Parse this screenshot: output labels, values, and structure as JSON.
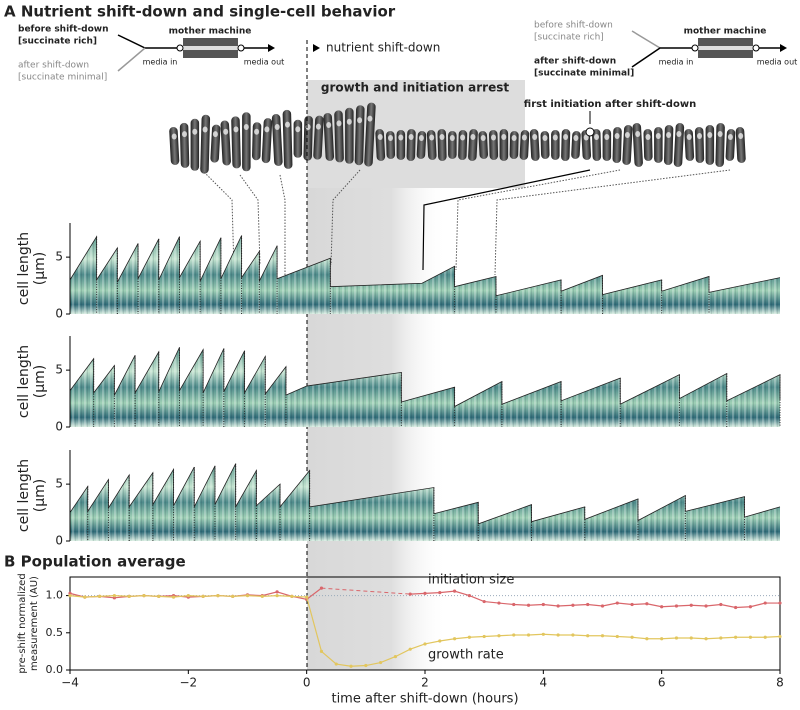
{
  "figure": {
    "panel_a_title": "A  Nutrient shift-down and single-cell behavior",
    "panel_b_title": "B  Population average",
    "shift_label": "nutrient shift-down",
    "arrest_label": "growth and initiation arrest",
    "first_initiation_label": "first initiation after shift-down",
    "schematics": [
      {
        "before": "before shift-down",
        "before_medium": "[succinate rich]",
        "after": "after shift-down",
        "after_medium": "[succinate minimal]",
        "device": "mother machine",
        "media_in": "media in",
        "media_out": "media out"
      },
      {
        "before": "before shift-down",
        "before_medium": "[succinate rich]",
        "after": "after shift-down",
        "after_medium": "[succinate minimal]",
        "device": "mother machine",
        "media_in": "media in",
        "media_out": "media out"
      }
    ]
  },
  "chart_data": [
    {
      "type": "area",
      "ylabel": [
        "cell length",
        "(µm)"
      ],
      "xlim": [
        -4,
        8
      ],
      "ylim": [
        0,
        8
      ],
      "yticks": [
        0,
        5
      ],
      "x": [
        -4,
        -3.55,
        -3.55,
        -3.2,
        -3.2,
        -2.85,
        -2.85,
        -2.5,
        -2.5,
        -2.15,
        -2.15,
        -1.8,
        -1.8,
        -1.45,
        -1.45,
        -1.1,
        -1.1,
        -0.8,
        -0.8,
        -0.5,
        -0.5,
        0.4,
        0.4,
        1.95,
        2.5,
        2.5,
        3.2,
        3.2,
        4.3,
        4.3,
        5.0,
        5.0,
        6.0,
        6.0,
        6.8,
        6.8,
        8
      ],
      "values": [
        3.0,
        6.8,
        3.0,
        5.8,
        2.8,
        6.2,
        3.1,
        6.6,
        3.0,
        6.8,
        3.2,
        6.4,
        2.9,
        6.7,
        3.1,
        6.9,
        3.2,
        5.5,
        2.9,
        6.0,
        3.1,
        4.9,
        2.4,
        2.7,
        4.2,
        2.4,
        3.3,
        1.6,
        3.0,
        2.0,
        3.4,
        1.7,
        3.0,
        2.0,
        3.3,
        1.9,
        3.2
      ]
    },
    {
      "type": "area",
      "ylabel": [
        "cell length",
        "(µm)"
      ],
      "xlim": [
        -4,
        8
      ],
      "ylim": [
        0,
        8
      ],
      "yticks": [
        0,
        5
      ],
      "x": [
        -4,
        -3.6,
        -3.6,
        -3.25,
        -3.25,
        -2.9,
        -2.9,
        -2.5,
        -2.5,
        -2.15,
        -2.15,
        -1.75,
        -1.75,
        -1.4,
        -1.4,
        -1.05,
        -1.05,
        -0.7,
        -0.7,
        -0.35,
        -0.35,
        0,
        1.6,
        1.6,
        2.5,
        2.5,
        3.3,
        3.3,
        4.3,
        4.3,
        5.3,
        5.3,
        6.3,
        6.3,
        7.1,
        7.1,
        8,
        8
      ],
      "values": [
        3.2,
        6.0,
        3.0,
        5.4,
        2.8,
        6.3,
        3.0,
        6.6,
        3.1,
        7.0,
        3.2,
        6.8,
        3.0,
        6.9,
        3.1,
        6.7,
        3.0,
        6.2,
        2.9,
        5.3,
        2.8,
        3.6,
        4.8,
        2.2,
        3.5,
        1.8,
        4.0,
        2.0,
        4.0,
        2.3,
        4.3,
        2.0,
        4.6,
        2.5,
        4.7,
        2.3,
        4.6,
        2.4
      ]
    },
    {
      "type": "area",
      "ylabel": [
        "cell length",
        "(µm)"
      ],
      "xlim": [
        -4,
        8
      ],
      "ylim": [
        0,
        8
      ],
      "yticks": [
        0,
        5
      ],
      "x": [
        -4,
        -3.7,
        -3.7,
        -3.35,
        -3.35,
        -3.0,
        -3.0,
        -2.6,
        -2.6,
        -2.25,
        -2.25,
        -1.9,
        -1.9,
        -1.55,
        -1.55,
        -1.2,
        -1.2,
        -0.85,
        -0.85,
        -0.45,
        -0.45,
        0.05,
        0.05,
        2.15,
        2.15,
        2.9,
        2.9,
        3.8,
        3.8,
        4.7,
        4.7,
        5.6,
        5.6,
        6.4,
        6.4,
        7.4,
        7.4,
        8
      ],
      "values": [
        2.5,
        4.8,
        2.6,
        5.4,
        2.9,
        5.8,
        3.0,
        6.0,
        3.2,
        6.3,
        3.1,
        6.5,
        3.0,
        6.6,
        3.2,
        6.8,
        3.0,
        6.2,
        3.1,
        5.0,
        3.0,
        6.2,
        3.0,
        4.7,
        2.4,
        3.4,
        1.5,
        3.2,
        1.7,
        3.0,
        1.9,
        3.7,
        1.8,
        4.0,
        2.6,
        3.9,
        2.1,
        3.0
      ]
    },
    {
      "type": "line",
      "xlabel": "time after shift-down (hours)",
      "ylabel": [
        "pre-shift normalized",
        "measurement (AU)"
      ],
      "xlim": [
        -4,
        8
      ],
      "ylim": [
        0,
        1.25
      ],
      "reference_line": 1,
      "xticks": [
        {
          "value": -4,
          "label": "−4"
        },
        {
          "value": -2,
          "label": "−2"
        },
        0,
        2,
        4,
        6,
        8
      ],
      "yticks": [
        {
          "value": 0,
          "label": "0.0"
        },
        {
          "value": 0.5,
          "label": "0.5"
        },
        {
          "value": 1,
          "label": "1.0"
        }
      ],
      "x": [
        -4,
        -3.75,
        -3.5,
        -3.25,
        -3,
        -2.75,
        -2.5,
        -2.25,
        -2,
        -1.75,
        -1.5,
        -1.25,
        -1,
        -0.75,
        -0.5,
        -0.25,
        0,
        0.25,
        0.5,
        0.75,
        1,
        1.25,
        1.5,
        1.75,
        2,
        2.25,
        2.5,
        2.75,
        3,
        3.25,
        3.5,
        3.75,
        4,
        4.25,
        4.5,
        4.75,
        5,
        5.25,
        5.5,
        5.75,
        6,
        6.25,
        6.5,
        6.75,
        7,
        7.25,
        7.5,
        7.75,
        8
      ],
      "series": [
        {
          "name": "initiation size",
          "color": "#d9666b",
          "values": [
            1.03,
            0.98,
            0.99,
            0.97,
            0.99,
            1.0,
            0.99,
            1.0,
            0.98,
            0.99,
            1.0,
            0.99,
            1.01,
            1.0,
            1.05,
            0.99,
            0.95,
            1.1,
            null,
            null,
            null,
            null,
            null,
            1.02,
            1.03,
            1.04,
            1.06,
            1.0,
            0.92,
            0.9,
            0.88,
            0.87,
            0.88,
            0.86,
            0.87,
            0.88,
            0.86,
            0.9,
            0.88,
            0.89,
            0.85,
            0.86,
            0.87,
            0.86,
            0.88,
            0.84,
            0.85,
            0.9,
            0.9
          ]
        },
        {
          "name": "growth rate",
          "color": "#e2c65e",
          "values": [
            1.0,
            0.98,
            0.99,
            1.0,
            0.99,
            1.0,
            0.99,
            0.98,
            1.0,
            0.99,
            1.0,
            0.99,
            1.0,
            0.99,
            1.0,
            0.99,
            0.98,
            0.25,
            0.08,
            0.05,
            0.06,
            0.1,
            0.18,
            0.28,
            0.35,
            0.39,
            0.42,
            0.44,
            0.45,
            0.46,
            0.47,
            0.47,
            0.48,
            0.47,
            0.47,
            0.46,
            0.46,
            0.45,
            0.44,
            0.42,
            0.42,
            0.43,
            0.43,
            0.42,
            0.43,
            0.44,
            0.44,
            0.44,
            0.45
          ]
        }
      ]
    }
  ]
}
